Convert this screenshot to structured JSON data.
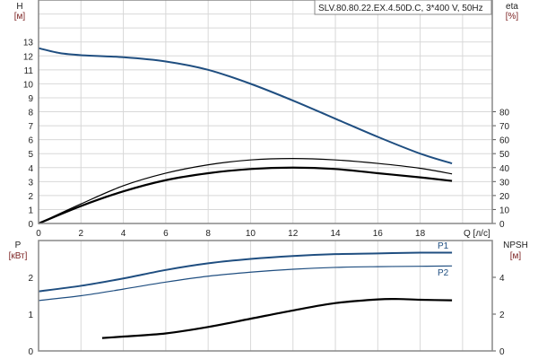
{
  "chart_data": [
    {
      "type": "line",
      "title": "SLV.80.80.22.EX.4.50D.C, 3*400 V, 50Hz",
      "xlabel": "Q [л/с]",
      "xlim": [
        0,
        21.4
      ],
      "xticks": [
        0,
        2,
        4,
        6,
        8,
        10,
        12,
        14,
        16,
        18
      ],
      "ylabel": "H",
      "ylabel_unit": "[м]",
      "ylim": [
        0,
        16
      ],
      "yticks": [
        0,
        1,
        2,
        3,
        4,
        5,
        6,
        7,
        8,
        9,
        10,
        11,
        12,
        13
      ],
      "y2label": "eta",
      "y2label_unit": "[%]",
      "y2lim": [
        0,
        160
      ],
      "y2ticks": [
        0,
        10,
        20,
        30,
        40,
        50,
        60,
        70,
        80
      ],
      "grid": true,
      "series": [
        {
          "axis": "H",
          "color": "#1f4e80",
          "width": 2,
          "x": [
            0,
            1,
            2,
            4,
            6,
            8,
            10,
            12,
            14,
            16,
            18,
            19.5
          ],
          "y": [
            12.55,
            12.2,
            12.05,
            11.9,
            11.6,
            11.0,
            10.0,
            8.8,
            7.5,
            6.2,
            5.0,
            4.3
          ]
        },
        {
          "axis": "eta",
          "color": "#000000",
          "width": 1.2,
          "x": [
            0,
            2,
            4,
            6,
            8,
            10,
            12,
            14,
            16,
            18,
            19.5
          ],
          "y": [
            0,
            14,
            27,
            36,
            42,
            45.5,
            46.5,
            45.5,
            43,
            39.5,
            35.5
          ]
        },
        {
          "axis": "eta",
          "color": "#000000",
          "width": 2.2,
          "x": [
            0,
            2,
            4,
            6,
            8,
            10,
            12,
            14,
            16,
            18,
            19.5
          ],
          "y": [
            0,
            12.5,
            23,
            31,
            36,
            39,
            40,
            39,
            36,
            33,
            30.5
          ]
        }
      ]
    },
    {
      "type": "line",
      "xlim": [
        0,
        21.4
      ],
      "ylabel": "P",
      "ylabel_unit": "[кВт]",
      "ylim": [
        0,
        3
      ],
      "yticks": [
        0,
        1,
        2
      ],
      "y2label": "NPSH",
      "y2label_unit": "[м]",
      "y2lim": [
        0,
        6
      ],
      "y2ticks": [
        0,
        2,
        4
      ],
      "grid": true,
      "series": [
        {
          "name": "P1",
          "axis": "P",
          "color": "#1f4e80",
          "width": 2,
          "x": [
            0,
            2,
            4,
            6,
            8,
            10,
            12,
            14,
            16,
            18,
            19.5
          ],
          "y": [
            1.62,
            1.77,
            1.97,
            2.2,
            2.38,
            2.5,
            2.58,
            2.63,
            2.65,
            2.67,
            2.67
          ]
        },
        {
          "name": "P2",
          "axis": "P",
          "color": "#1f4e80",
          "width": 1.2,
          "x": [
            0,
            2,
            4,
            6,
            8,
            10,
            12,
            14,
            16,
            18,
            19.5
          ],
          "y": [
            1.37,
            1.5,
            1.68,
            1.87,
            2.03,
            2.14,
            2.22,
            2.27,
            2.29,
            2.3,
            2.31
          ]
        },
        {
          "axis": "NPSH",
          "color": "#000000",
          "width": 2.2,
          "x": [
            3,
            4,
            6,
            8,
            10,
            12,
            14,
            16,
            17,
            18,
            19.5
          ],
          "y": [
            0.7,
            0.78,
            0.95,
            1.3,
            1.75,
            2.2,
            2.6,
            2.8,
            2.82,
            2.78,
            2.75
          ]
        }
      ]
    }
  ]
}
